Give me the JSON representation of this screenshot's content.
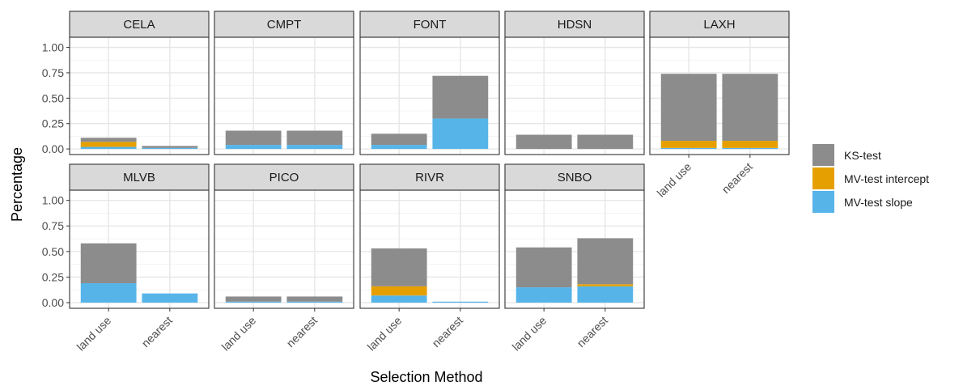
{
  "chart_data": {
    "type": "bar",
    "stacked": true,
    "faceted": true,
    "xlabel": "Selection Method",
    "ylabel": "Percentage",
    "categories": [
      "land use",
      "nearest"
    ],
    "ylim": [
      0,
      1.1
    ],
    "yticks": [
      0.0,
      0.25,
      0.5,
      0.75,
      1.0
    ],
    "ytick_labels": [
      "0.00",
      "0.25",
      "0.50",
      "0.75",
      "1.00"
    ],
    "grid": true,
    "legend_position": "right",
    "series": [
      {
        "name": "KS-test",
        "color": "#8c8c8c"
      },
      {
        "name": "MV-test intercept",
        "color": "#e69f00"
      },
      {
        "name": "MV-test slope",
        "color": "#56b4e9"
      }
    ],
    "panels": [
      {
        "name": "CELA",
        "bars": [
          {
            "category": "land use",
            "slope": 0.02,
            "intercept": 0.05,
            "ks": 0.04
          },
          {
            "category": "nearest",
            "slope": 0.01,
            "intercept": 0.0,
            "ks": 0.02
          }
        ]
      },
      {
        "name": "CMPT",
        "bars": [
          {
            "category": "land use",
            "slope": 0.04,
            "intercept": 0.0,
            "ks": 0.14
          },
          {
            "category": "nearest",
            "slope": 0.04,
            "intercept": 0.0,
            "ks": 0.14
          }
        ]
      },
      {
        "name": "FONT",
        "bars": [
          {
            "category": "land use",
            "slope": 0.04,
            "intercept": 0.0,
            "ks": 0.11
          },
          {
            "category": "nearest",
            "slope": 0.3,
            "intercept": 0.0,
            "ks": 0.42
          }
        ]
      },
      {
        "name": "HDSN",
        "bars": [
          {
            "category": "land use",
            "slope": 0.0,
            "intercept": 0.0,
            "ks": 0.14
          },
          {
            "category": "nearest",
            "slope": 0.0,
            "intercept": 0.0,
            "ks": 0.14
          }
        ]
      },
      {
        "name": "LAXH",
        "bars": [
          {
            "category": "land use",
            "slope": 0.01,
            "intercept": 0.07,
            "ks": 0.66
          },
          {
            "category": "nearest",
            "slope": 0.01,
            "intercept": 0.07,
            "ks": 0.66
          }
        ]
      },
      {
        "name": "MLVB",
        "bars": [
          {
            "category": "land use",
            "slope": 0.19,
            "intercept": 0.0,
            "ks": 0.39
          },
          {
            "category": "nearest",
            "slope": 0.09,
            "intercept": 0.0,
            "ks": 0.0
          }
        ]
      },
      {
        "name": "PICO",
        "bars": [
          {
            "category": "land use",
            "slope": 0.01,
            "intercept": 0.0,
            "ks": 0.05
          },
          {
            "category": "nearest",
            "slope": 0.01,
            "intercept": 0.0,
            "ks": 0.05
          }
        ]
      },
      {
        "name": "RIVR",
        "bars": [
          {
            "category": "land use",
            "slope": 0.07,
            "intercept": 0.09,
            "ks": 0.37
          },
          {
            "category": "nearest",
            "slope": 0.01,
            "intercept": 0.0,
            "ks": 0.0
          }
        ]
      },
      {
        "name": "SNBO",
        "bars": [
          {
            "category": "land use",
            "slope": 0.15,
            "intercept": 0.0,
            "ks": 0.39
          },
          {
            "category": "nearest",
            "slope": 0.16,
            "intercept": 0.02,
            "ks": 0.45
          }
        ]
      }
    ]
  }
}
